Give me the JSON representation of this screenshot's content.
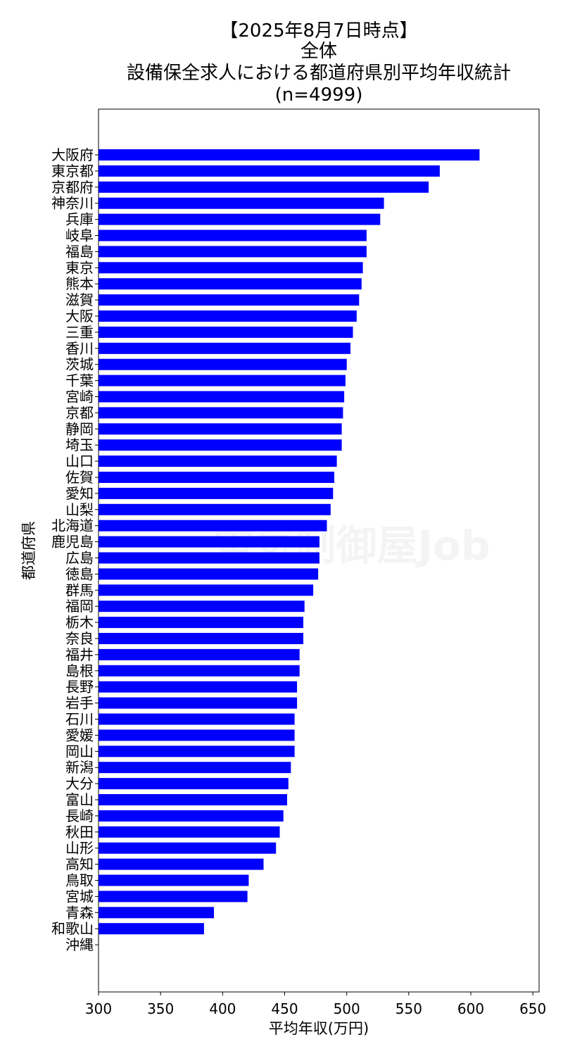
{
  "chart_data": {
    "type": "bar",
    "orientation": "horizontal",
    "title_lines": [
      "【2025年8月7日時点】",
      "全体",
      "設備保全求人における都道府県別平均年収統計",
      "(n=4999)"
    ],
    "xlabel": "平均年収(万円)",
    "ylabel": "都道府県",
    "xlim": [
      300,
      655
    ],
    "xticks": [
      300,
      350,
      400,
      450,
      500,
      550,
      600,
      650
    ],
    "bar_color": "#0000ff",
    "watermark": "電気制御屋Job",
    "categories": [
      "大阪府",
      "東京都",
      "京都府",
      "神奈川",
      "兵庫",
      "岐阜",
      "福島",
      "東京",
      "熊本",
      "滋賀",
      "大阪",
      "三重",
      "香川",
      "茨城",
      "千葉",
      "宮崎",
      "京都",
      "静岡",
      "埼玉",
      "山口",
      "佐賀",
      "愛知",
      "山梨",
      "北海道",
      "鹿児島",
      "広島",
      "徳島",
      "群馬",
      "福岡",
      "栃木",
      "奈良",
      "福井",
      "島根",
      "長野",
      "岩手",
      "石川",
      "愛媛",
      "岡山",
      "新潟",
      "大分",
      "富山",
      "長崎",
      "秋田",
      "山形",
      "高知",
      "鳥取",
      "宮城",
      "青森",
      "和歌山",
      "沖縄"
    ],
    "values": [
      607,
      575,
      566,
      530,
      527,
      516,
      516,
      513,
      512,
      510,
      508,
      505,
      503,
      500,
      499,
      498,
      497,
      496,
      496,
      492,
      490,
      489,
      487,
      484,
      478,
      478,
      477,
      473,
      466,
      465,
      465,
      462,
      462,
      460,
      460,
      458,
      458,
      458,
      455,
      453,
      452,
      449,
      446,
      443,
      433,
      421,
      420,
      393,
      385,
      null
    ]
  }
}
